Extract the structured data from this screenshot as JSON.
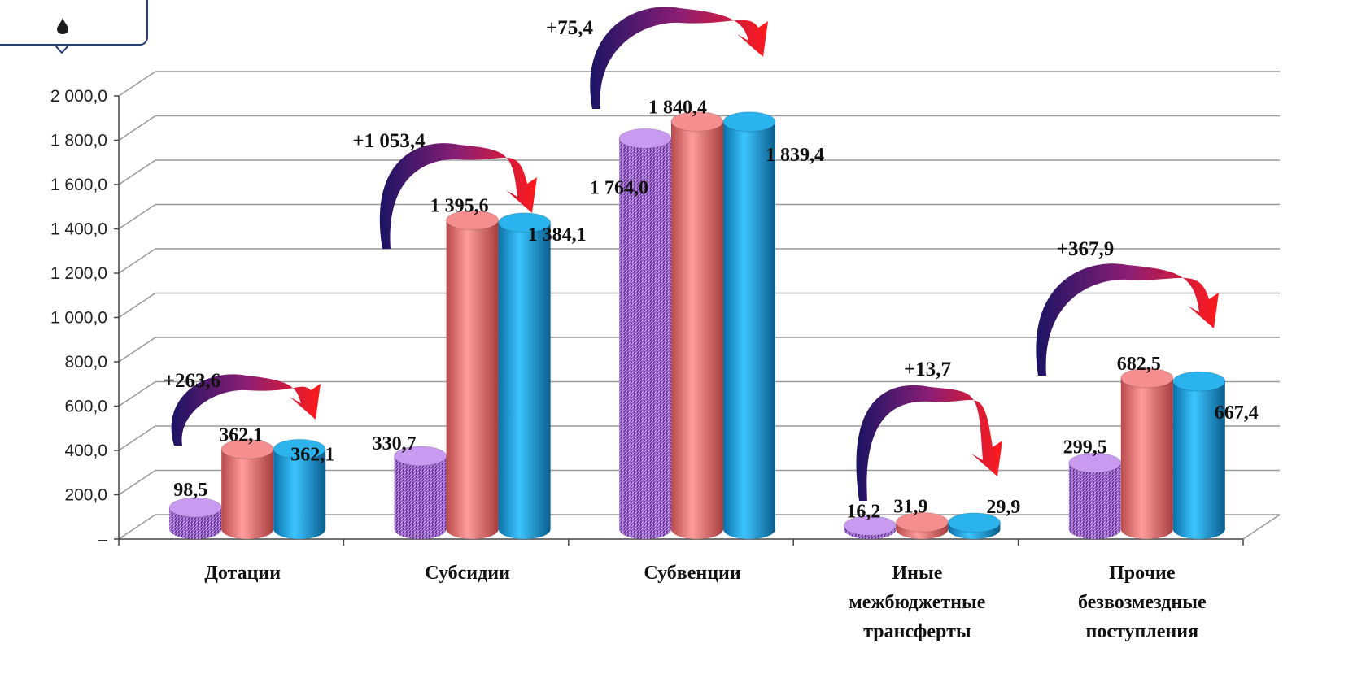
{
  "chart_data": {
    "type": "bar",
    "title": "",
    "xlabel": "",
    "ylabel": "",
    "ylim": [
      0,
      2000
    ],
    "yticks": [
      "–",
      "200,0",
      "400,0",
      "600,0",
      "800,0",
      "1 000,0",
      "1 200,0",
      "1 400,0",
      "1 600,0",
      "1 800,0",
      "2 000,0"
    ],
    "grid": true,
    "legend": "none",
    "categories": [
      [
        "Дотации"
      ],
      [
        "Субсидии"
      ],
      [
        "Субвенции"
      ],
      [
        "Иные",
        "межбюджетные",
        "трансферты"
      ],
      [
        "Прочие",
        "безвозмездные",
        "поступления"
      ]
    ],
    "series": [
      {
        "color": "#9b59d6",
        "values": [
          98.5,
          330.7,
          1764.0,
          16.2,
          299.5
        ],
        "labels": [
          "98,5",
          "330,7",
          "1 764,0",
          "16,2",
          "299,5"
        ]
      },
      {
        "color": "#f07b7b",
        "values": [
          362.1,
          1395.6,
          1840.4,
          31.9,
          682.5
        ],
        "labels": [
          "362,1",
          "1 395,6",
          "1 840,4",
          "31,9",
          "682,5"
        ]
      },
      {
        "color": "#1fa6e0",
        "values": [
          362.1,
          1384.1,
          1839.4,
          29.9,
          667.4
        ],
        "labels": [
          "362,1",
          "1 384,1",
          "1 839,4",
          "29,9",
          "667,4"
        ]
      }
    ],
    "deltas": [
      "+263,6",
      "+1 053,4",
      "+75,4",
      "+13,7",
      "+367,9"
    ],
    "arrow_colors": {
      "start": "#1b1464",
      "end": "#ff1a1a"
    }
  },
  "logo": {
    "icon": "drop-emblem-icon",
    "color": "#1a1a1a"
  }
}
